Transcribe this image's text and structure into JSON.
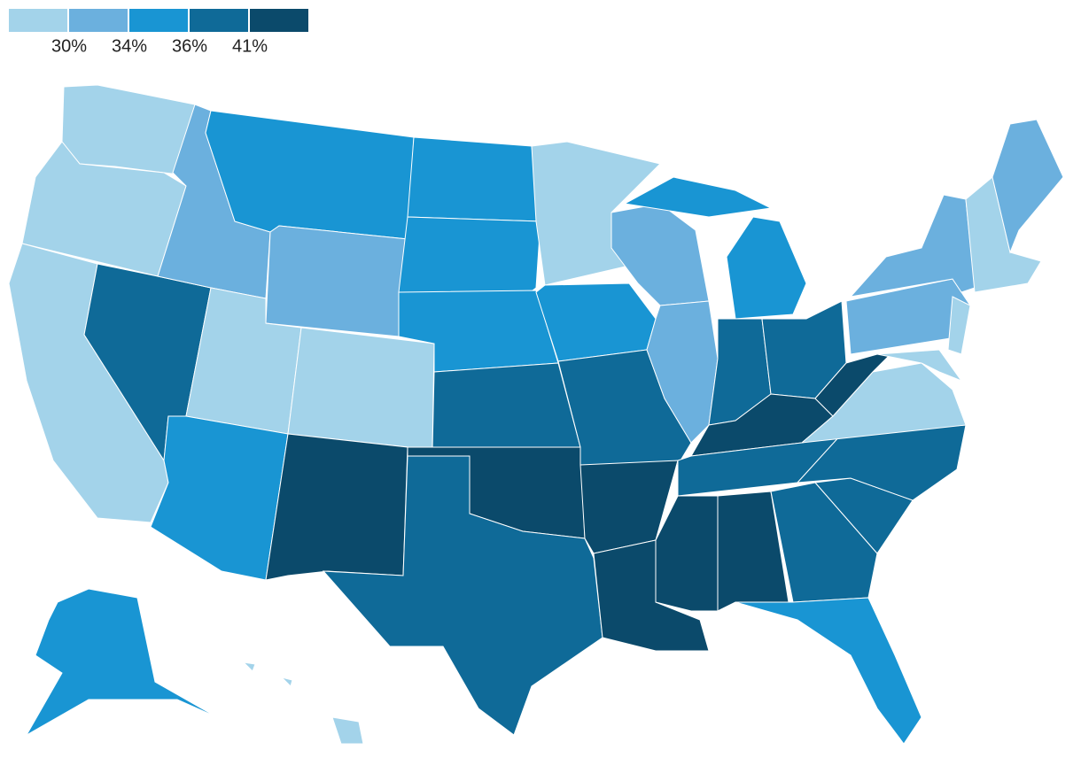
{
  "legend": {
    "colors": [
      "#a3d3ea",
      "#6bb0de",
      "#1995d3",
      "#0f6a98",
      "#0b4a6b"
    ],
    "ticks": [
      {
        "value": 30,
        "label": "30%"
      },
      {
        "value": 34,
        "label": "34%"
      },
      {
        "value": 36,
        "label": "36%"
      },
      {
        "value": 41,
        "label": "41%"
      }
    ]
  },
  "regions": [
    0,
    0,
    0,
    3,
    1,
    2,
    1,
    0,
    2,
    0,
    4,
    2,
    2,
    2,
    3,
    4,
    3,
    0,
    2,
    3,
    4,
    4,
    1,
    1,
    2,
    3,
    3,
    4,
    3,
    4,
    4,
    3,
    2,
    3,
    3,
    0,
    4,
    1,
    1,
    0,
    0,
    0,
    1,
    2,
    0
  ]
}
